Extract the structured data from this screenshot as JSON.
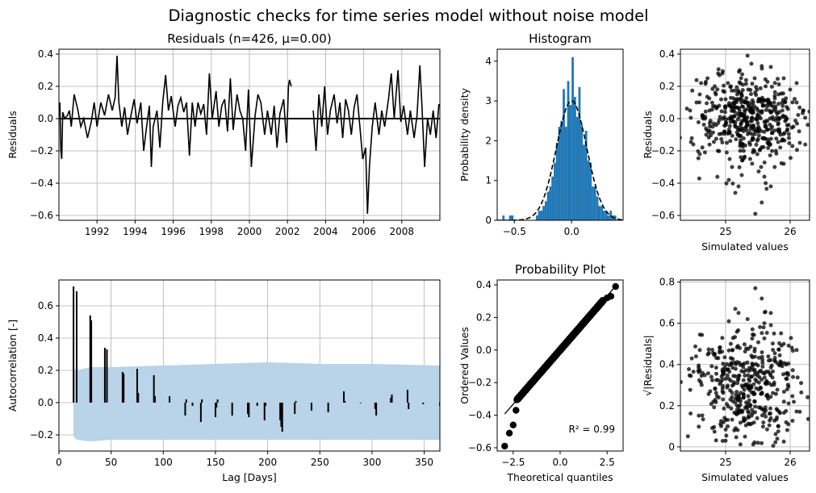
{
  "suptitle": "Diagnostic checks for time series model without noise model",
  "chart_data": [
    {
      "id": "residuals",
      "type": "line",
      "title": "Residuals (n=426, μ=0.00)",
      "xlabel": "",
      "ylabel": "Residuals",
      "xlim": [
        1990.0,
        2010.0
      ],
      "ylim": [
        -0.63,
        0.43
      ],
      "x_ticks": [
        1992,
        1994,
        1996,
        1998,
        2000,
        2002,
        2004,
        2006,
        2008
      ],
      "y_ticks": [
        -0.6,
        -0.4,
        -0.2,
        0.0,
        0.2,
        0.4
      ],
      "y_tick_labels": [
        "−0.6",
        "−0.4",
        "−0.2",
        "0.0",
        "0.2",
        "0.4"
      ],
      "grid": true,
      "line_color": "#000000",
      "zero_line": 0.0,
      "x": [
        1990.05,
        1990.1,
        1990.15,
        1990.2,
        1990.3,
        1990.45,
        1990.55,
        1990.65,
        1990.8,
        1991.0,
        1991.15,
        1991.3,
        1991.5,
        1991.7,
        1991.85,
        1992.0,
        1992.2,
        1992.4,
        1992.6,
        1992.8,
        1992.95,
        1993.05,
        1993.15,
        1993.3,
        1993.45,
        1993.6,
        1993.75,
        1993.95,
        1994.1,
        1994.3,
        1994.45,
        1994.6,
        1994.75,
        1994.85,
        1994.95,
        1995.15,
        1995.3,
        1995.45,
        1995.6,
        1995.75,
        1995.9,
        1996.1,
        1996.25,
        1996.4,
        1996.55,
        1996.7,
        1996.85,
        1997.0,
        1997.15,
        1997.3,
        1997.45,
        1997.6,
        1997.75,
        1997.9,
        1998.05,
        1998.25,
        1998.4,
        1998.55,
        1998.7,
        1998.85,
        1999.0,
        1999.15,
        1999.35,
        1999.5,
        1999.65,
        1999.8,
        1999.95,
        2000.1,
        2000.3,
        2000.45,
        2000.6,
        2000.8,
        2000.95,
        2001.15,
        2001.3,
        2001.45,
        2001.6,
        2001.8,
        2001.95,
        2002.05,
        2002.1,
        2002.2
      ],
      "values": [
        0.1,
        -0.2,
        -0.25,
        0.04,
        0.0,
        0.02,
        0.05,
        -0.05,
        0.15,
        0.05,
        -0.05,
        0.0,
        -0.12,
        -0.02,
        0.1,
        -0.05,
        0.1,
        0.02,
        0.15,
        0.05,
        0.13,
        0.39,
        0.1,
        -0.05,
        0.07,
        -0.1,
        0.0,
        0.12,
        -0.03,
        0.1,
        -0.2,
        -0.05,
        0.08,
        -0.3,
        -0.05,
        0.05,
        -0.18,
        0.1,
        0.27,
        0.05,
        0.14,
        -0.05,
        0.08,
        0.13,
        0.04,
        0.1,
        -0.23,
        0.1,
        -0.05,
        0.1,
        0.03,
        0.09,
        -0.1,
        0.28,
        0.0,
        0.17,
        -0.05,
        0.08,
        0.12,
        -0.08,
        0.25,
        -0.07,
        0.15,
        0.05,
        0.0,
        -0.2,
        0.18,
        -0.3,
        0.02,
        0.15,
        0.1,
        -0.1,
        0.05,
        -0.1,
        0.08,
        -0.18,
        0.03,
        0.12,
        -0.15,
        0.2,
        0.24,
        0.2
      ],
      "x2": [
        2003.35,
        2003.5,
        2003.65,
        2003.8,
        2003.95,
        2004.1,
        2004.25,
        2004.45,
        2004.6,
        2004.75,
        2004.9,
        2005.05,
        2005.2,
        2005.35,
        2005.5,
        2005.65,
        2005.8,
        2005.95,
        2006.1,
        2006.2,
        2006.3,
        2006.45,
        2006.6,
        2006.8,
        2006.95,
        2007.1,
        2007.3,
        2007.45,
        2007.6,
        2007.8,
        2007.95,
        2008.1,
        2008.3,
        2008.45,
        2008.65,
        2008.8,
        2008.95,
        2009.05,
        2009.2,
        2009.35,
        2009.5,
        2009.65,
        2009.8,
        2009.95
      ],
      "values2": [
        0.05,
        -0.2,
        0.15,
        -0.05,
        0.2,
        -0.1,
        0.05,
        0.15,
        -0.03,
        0.1,
        -0.12,
        0.12,
        0.05,
        -0.1,
        0.07,
        0.15,
        -0.05,
        -0.25,
        -0.18,
        -0.59,
        -0.3,
        -0.05,
        0.1,
        -0.1,
        0.05,
        -0.05,
        0.12,
        0.28,
        0.0,
        0.3,
        -0.02,
        0.08,
        -0.1,
        0.05,
        -0.12,
        0.02,
        0.33,
        0.1,
        -0.3,
        0.0,
        -0.1,
        0.05,
        -0.12,
        0.09
      ]
    },
    {
      "id": "histogram",
      "type": "bar",
      "title": "Histogram",
      "xlabel": "",
      "ylabel": "Probability density",
      "xlim": [
        -0.65,
        0.45
      ],
      "ylim": [
        0,
        4.3
      ],
      "x_ticks": [
        -0.5,
        0.0
      ],
      "x_tick_labels": [
        "−0.5",
        "0.0"
      ],
      "y_ticks": [
        0,
        1,
        2,
        3,
        4
      ],
      "grid": false,
      "bar_color": "#1f77b4",
      "bin_width": 0.0195,
      "bin_starts": [
        -0.605,
        -0.585,
        -0.566,
        -0.546,
        -0.527,
        -0.507,
        -0.488,
        -0.468,
        -0.449,
        -0.429,
        -0.41,
        -0.39,
        -0.371,
        -0.351,
        -0.332,
        -0.312,
        -0.293,
        -0.273,
        -0.254,
        -0.234,
        -0.215,
        -0.195,
        -0.176,
        -0.156,
        -0.137,
        -0.117,
        -0.098,
        -0.078,
        -0.059,
        -0.039,
        -0.02,
        0.0,
        0.02,
        0.039,
        0.059,
        0.078,
        0.098,
        0.117,
        0.137,
        0.156,
        0.176,
        0.195,
        0.215,
        0.234,
        0.254,
        0.273,
        0.293,
        0.312,
        0.332,
        0.351,
        0.371
      ],
      "values": [
        0.12,
        0,
        0,
        0.12,
        0.12,
        0,
        0,
        0,
        0,
        0,
        0,
        0,
        0,
        0,
        0,
        0.12,
        0.24,
        0.24,
        0.36,
        0.48,
        0.72,
        0.85,
        1.1,
        1.45,
        1.95,
        2.35,
        2.5,
        3.3,
        2.35,
        3.5,
        2.9,
        4.1,
        3.1,
        2.6,
        3.35,
        2.4,
        1.9,
        2.25,
        1.5,
        1.45,
        0.85,
        0.85,
        0.6,
        0.36,
        0.36,
        0.24,
        0.24,
        0.12,
        0.24,
        0.12,
        0.12
      ],
      "normal_fit": {
        "mean": 0.0,
        "std": 0.133,
        "line_style": "dashed",
        "line_color": "#000000"
      }
    },
    {
      "id": "resid-vs-sim",
      "type": "scatter",
      "title": "",
      "xlabel": "Simulated values",
      "ylabel": "Residuals",
      "xlim": [
        24.3,
        26.3
      ],
      "ylim": [
        -0.63,
        0.43
      ],
      "x_ticks": [
        25,
        26
      ],
      "y_ticks": [
        -0.6,
        -0.4,
        -0.2,
        0.0,
        0.2,
        0.4
      ],
      "y_tick_labels": [
        "−0.6",
        "−0.4",
        "−0.2",
        "0.0",
        "0.2",
        "0.4"
      ],
      "grid": true,
      "marker_color": "#000000",
      "marker_alpha": 0.75,
      "points": [
        [
          24.45,
          0.05
        ],
        [
          24.5,
          -0.16
        ],
        [
          24.55,
          0.1
        ],
        [
          24.6,
          0.15
        ],
        [
          24.65,
          0.0
        ],
        [
          24.7,
          -0.1
        ],
        [
          24.72,
          0.25
        ],
        [
          24.75,
          0.05
        ],
        [
          24.8,
          -0.05
        ],
        [
          24.85,
          0.15
        ],
        [
          24.88,
          -0.2
        ],
        [
          24.9,
          0.08
        ],
        [
          24.95,
          0.28
        ],
        [
          24.98,
          -0.08
        ],
        [
          25.0,
          0.12
        ],
        [
          25.02,
          -0.15
        ],
        [
          25.05,
          0.0
        ],
        [
          25.08,
          0.2
        ],
        [
          25.1,
          -0.3
        ],
        [
          25.12,
          0.05
        ],
        [
          25.15,
          -0.05
        ],
        [
          25.18,
          0.15
        ],
        [
          25.2,
          -0.1
        ],
        [
          25.22,
          0.3
        ],
        [
          25.25,
          0.02
        ],
        [
          25.28,
          -0.2
        ],
        [
          25.3,
          0.1
        ],
        [
          25.32,
          -0.05
        ],
        [
          25.35,
          0.18
        ],
        [
          25.38,
          -0.25
        ],
        [
          25.4,
          0.05
        ],
        [
          25.42,
          -0.12
        ],
        [
          25.45,
          0.25
        ],
        [
          25.48,
          0.0
        ],
        [
          25.5,
          -0.08
        ],
        [
          25.52,
          0.12
        ],
        [
          25.55,
          -0.3
        ],
        [
          25.58,
          0.08
        ],
        [
          25.6,
          -0.02
        ],
        [
          25.62,
          0.2
        ],
        [
          25.65,
          -0.15
        ],
        [
          25.68,
          0.05
        ],
        [
          25.7,
          0.32
        ],
        [
          25.72,
          -0.05
        ],
        [
          25.75,
          0.1
        ],
        [
          25.78,
          -0.2
        ],
        [
          25.8,
          0.03
        ],
        [
          25.82,
          0.15
        ],
        [
          25.85,
          -0.1
        ],
        [
          25.88,
          0.05
        ],
        [
          25.9,
          -0.28
        ],
        [
          25.92,
          0.1
        ],
        [
          25.95,
          0.0
        ],
        [
          25.98,
          -0.12
        ],
        [
          26.0,
          0.18
        ],
        [
          26.05,
          -0.05
        ],
        [
          26.1,
          0.1
        ],
        [
          26.15,
          -0.15
        ],
        [
          26.2,
          0.05
        ],
        [
          25.34,
          0.39
        ],
        [
          25.46,
          -0.59
        ],
        [
          25.56,
          -0.52
        ],
        [
          25.05,
          -0.38
        ],
        [
          25.2,
          -0.42
        ],
        [
          25.15,
          -0.46
        ],
        [
          25.4,
          0.34
        ],
        [
          25.6,
          -0.36
        ],
        [
          25.62,
          -0.4
        ],
        [
          25.7,
          -0.42
        ],
        [
          25.76,
          -0.3
        ],
        [
          24.6,
          -0.22
        ],
        [
          24.62,
          0.22
        ],
        [
          25.9,
          0.25
        ],
        [
          26.1,
          0.22
        ],
        [
          25.25,
          -0.35
        ]
      ],
      "point_cloud": {
        "n": 426,
        "center_x": 25.35,
        "spread_x": 0.4,
        "spread_y": 0.13
      }
    },
    {
      "id": "acf",
      "type": "bar",
      "title": "",
      "xlabel": "Lag [Days]",
      "ylabel": "Autocorrelation [-]",
      "xlim": [
        0,
        365
      ],
      "ylim": [
        -0.3,
        0.76
      ],
      "x_ticks": [
        0,
        50,
        100,
        150,
        200,
        250,
        300,
        350
      ],
      "y_ticks": [
        -0.2,
        0.0,
        0.2,
        0.4,
        0.6
      ],
      "y_tick_labels": [
        "−0.2",
        "0.0",
        "0.2",
        "0.4",
        "0.6"
      ],
      "grid": true,
      "bar_color": "#000000",
      "band_color": "#b9d3e8",
      "band_lags": [
        14,
        17,
        30,
        50,
        100,
        150,
        200,
        250,
        300,
        365
      ],
      "band_upper": [
        0.21,
        0.2,
        0.22,
        0.22,
        0.23,
        0.24,
        0.25,
        0.24,
        0.24,
        0.23
      ],
      "band_lower": [
        -0.21,
        -0.23,
        -0.24,
        -0.23,
        -0.23,
        -0.23,
        -0.23,
        -0.23,
        -0.23,
        -0.23
      ],
      "lags": [
        14,
        17,
        30,
        31,
        44,
        46,
        61,
        62,
        75,
        76,
        91,
        92,
        106,
        121,
        122,
        128,
        136,
        137,
        150,
        151,
        152,
        166,
        181,
        182,
        190,
        197,
        198,
        212,
        213,
        214,
        226,
        227,
        242,
        258,
        273,
        274,
        289,
        303,
        304,
        318,
        319,
        334,
        335,
        349,
        365
      ],
      "values": [
        0.72,
        0.69,
        0.54,
        0.51,
        0.34,
        0.33,
        0.19,
        0.18,
        0.21,
        0.06,
        0.17,
        0.04,
        0.04,
        -0.08,
        0.02,
        -0.02,
        -0.12,
        0.02,
        -0.09,
        -0.03,
        0.02,
        -0.08,
        -0.07,
        -0.09,
        -0.02,
        -0.11,
        -0.02,
        -0.11,
        -0.15,
        -0.18,
        -0.07,
        0.01,
        -0.05,
        -0.06,
        0.07,
        0.01,
        0.0,
        -0.04,
        -0.08,
        0.03,
        0.05,
        0.08,
        -0.04,
        -0.01,
        -0.02
      ]
    },
    {
      "id": "prob-plot",
      "type": "scatter",
      "title": "Probability Plot",
      "xlabel": "Theoretical quantiles",
      "ylabel": "Ordered Values",
      "xlim": [
        -3.35,
        3.35
      ],
      "ylim": [
        -0.62,
        0.43
      ],
      "x_ticks": [
        -2.5,
        0.0,
        2.5
      ],
      "x_tick_labels": [
        "−2.5",
        "0.0",
        "2.5"
      ],
      "y_ticks": [
        -0.6,
        -0.4,
        -0.2,
        0.0,
        0.2,
        0.4
      ],
      "y_tick_labels": [
        "−0.6",
        "−0.4",
        "−0.2",
        "0.0",
        "0.2",
        "0.4"
      ],
      "grid": false,
      "marker_color": "#000000",
      "fit_line": {
        "slope": 0.133,
        "intercept": 0.0,
        "x_range": [
          -2.95,
          2.95
        ]
      },
      "tail_points": [
        [
          -2.95,
          -0.59
        ],
        [
          -2.7,
          -0.51
        ],
        [
          -2.5,
          -0.46
        ],
        [
          -2.35,
          -0.37
        ],
        [
          2.5,
          0.32
        ],
        [
          2.7,
          0.33
        ],
        [
          2.95,
          0.39
        ]
      ],
      "annotation": "R² = 0.99",
      "annotation_value": 0.99
    },
    {
      "id": "sqrt-resid-vs-sim",
      "type": "scatter",
      "title": "",
      "xlabel": "Simulated values",
      "ylabel": "√|Residuals|",
      "xlim": [
        24.3,
        26.3
      ],
      "ylim": [
        -0.02,
        0.81
      ],
      "x_ticks": [
        25,
        26
      ],
      "y_ticks": [
        0.0,
        0.2,
        0.4,
        0.6,
        0.8
      ],
      "grid": true,
      "marker_color": "#000000",
      "marker_alpha": 0.75,
      "points": [
        [
          25.46,
          0.77
        ],
        [
          25.56,
          0.72
        ],
        [
          25.34,
          0.62
        ],
        [
          25.05,
          0.61
        ],
        [
          25.2,
          0.65
        ],
        [
          25.6,
          0.6
        ],
        [
          25.7,
          0.65
        ],
        [
          24.6,
          0.47
        ],
        [
          26.1,
          0.47
        ],
        [
          25.9,
          0.5
        ],
        [
          25.15,
          0.67
        ],
        [
          25.75,
          0.55
        ],
        [
          25.3,
          0.05
        ],
        [
          25.5,
          0.02
        ],
        [
          25.0,
          0.03
        ],
        [
          25.8,
          0.04
        ]
      ],
      "point_cloud": {
        "n": 426,
        "center_x": 25.35,
        "spread_x": 0.4,
        "mean_y": 0.3,
        "spread_y": 0.13
      }
    }
  ]
}
